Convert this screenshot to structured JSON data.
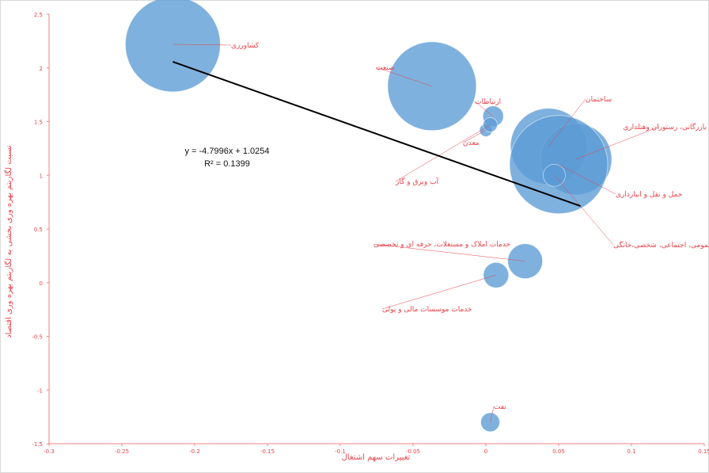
{
  "chart_data": {
    "type": "scatter",
    "subtype": "bubble",
    "title": "",
    "xlabel": "تغییرات سهم اشتغال",
    "ylabel": "نسبت لگاریتم بهره وری بخشی به لگاریتم بهره وری اقتصاد",
    "xlim": [
      -0.3,
      0.15
    ],
    "ylim": [
      -1.5,
      2.5
    ],
    "x_ticks": [
      "-0.3",
      "-0.25",
      "-0.2",
      "-0.15",
      "-0.1",
      "-0.05",
      "0",
      "0.05",
      "0.1",
      "0.15"
    ],
    "y_ticks": [
      "-1.5",
      "-1",
      "-0.5",
      "0",
      "0.5",
      "1",
      "1.5",
      "2",
      "2.5"
    ],
    "grid": false,
    "bubble_color": "#5b9bd5",
    "axis_color": "#f08080",
    "series": [
      {
        "label": "کشاورزی",
        "x": -0.215,
        "y": 2.22,
        "size": 60
      },
      {
        "label": "صنعت",
        "x": -0.037,
        "y": 1.83,
        "size": 56
      },
      {
        "label": "ارتباطات",
        "x": 0.005,
        "y": 1.55,
        "size": 13
      },
      {
        "label": "معدن",
        "x": 0.0,
        "y": 1.42,
        "size": 8
      },
      {
        "label": "آب وبرق و گاز",
        "x": 0.003,
        "y": 1.47,
        "size": 9
      },
      {
        "label": "ساختمان",
        "x": 0.043,
        "y": 1.27,
        "size": 48
      },
      {
        "label": "بازرگانی، رستوران وهتلداری",
        "x": 0.062,
        "y": 1.15,
        "size": 45
      },
      {
        "label": "حمل و نقل و انبارداری",
        "x": 0.05,
        "y": 1.1,
        "size": 62
      },
      {
        "label": "خدمات عمومی، اجتماعی، شخصی،خانگی",
        "x": 0.047,
        "y": 1.0,
        "size": 14
      },
      {
        "label": "خدمات املاک و مستغلات، حرفه ای و تخصصی",
        "x": 0.027,
        "y": 0.2,
        "size": 22
      },
      {
        "label": "خدمات موسسات مالی و پولی",
        "x": 0.007,
        "y": 0.07,
        "size": 16
      },
      {
        "label": "نفت",
        "x": 0.003,
        "y": -1.3,
        "size": 12
      }
    ],
    "trendline": {
      "equation": "y = -4.7996x + 1.0254",
      "r2": "R² = 0.1399",
      "slope": -4.7996,
      "intercept": 1.0254,
      "x_range": [
        -0.215,
        0.065
      ],
      "color": "#000000"
    }
  }
}
